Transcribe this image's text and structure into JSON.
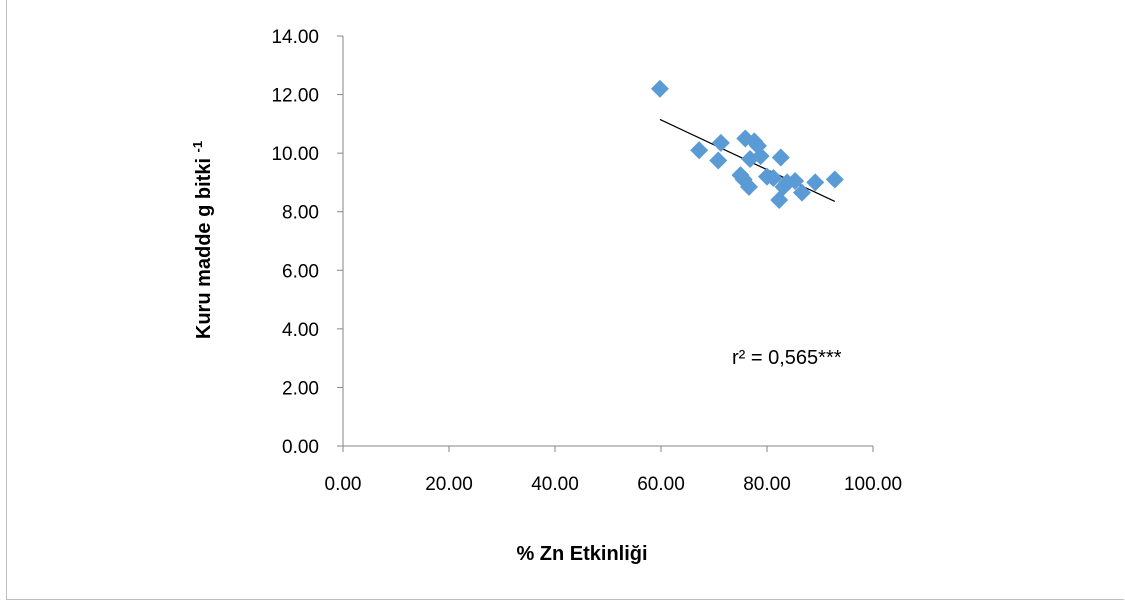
{
  "chart_data": {
    "type": "scatter",
    "title": "",
    "xlabel": "%  Zn Etkinliği",
    "ylabel_main": "Kuru madde g bitki",
    "ylabel_sup": "-1",
    "xlim": [
      0,
      100
    ],
    "ylim": [
      0,
      14
    ],
    "x_ticks": [
      "0.00",
      "20.00",
      "40.00",
      "60.00",
      "80.00",
      "100.00"
    ],
    "y_ticks": [
      "0.00",
      "2.00",
      "4.00",
      "6.00",
      "8.00",
      "10.00",
      "12.00",
      "14.00"
    ],
    "grid": false,
    "legend": "none",
    "marker": "diamond",
    "marker_color": "#5b9bd5",
    "trendline_color": "#000000",
    "annotation": "r² = 0,565***",
    "series": [
      {
        "points": [
          [
            59.8,
            12.2
          ],
          [
            67.2,
            10.1
          ],
          [
            70.8,
            9.75
          ],
          [
            71.3,
            10.35
          ],
          [
            75.0,
            9.25
          ],
          [
            75.6,
            9.1
          ],
          [
            75.9,
            10.5
          ],
          [
            76.6,
            8.85
          ],
          [
            76.8,
            9.8
          ],
          [
            77.6,
            10.4
          ],
          [
            78.3,
            10.25
          ],
          [
            78.8,
            9.9
          ],
          [
            80.0,
            9.2
          ],
          [
            81.2,
            9.15
          ],
          [
            82.3,
            8.4
          ],
          [
            82.6,
            9.85
          ],
          [
            83.1,
            8.85
          ],
          [
            83.8,
            9.0
          ],
          [
            85.3,
            9.05
          ],
          [
            86.6,
            8.65
          ],
          [
            89.1,
            9.0
          ],
          [
            92.8,
            9.1
          ]
        ],
        "trendline": [
          [
            59.8,
            11.15
          ],
          [
            92.8,
            8.35
          ]
        ]
      }
    ]
  }
}
